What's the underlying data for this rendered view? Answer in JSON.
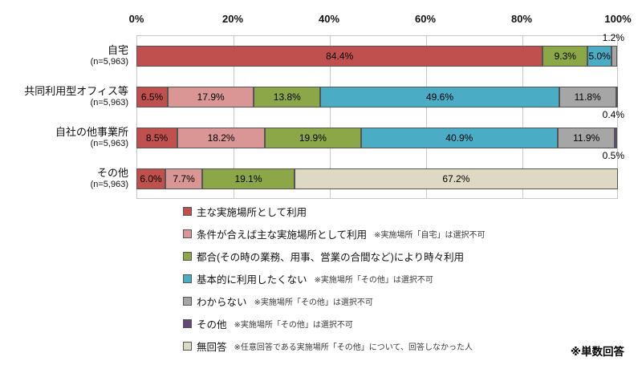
{
  "chart_data": {
    "type": "bar",
    "orientation": "horizontal",
    "stacked": true,
    "x_ticks": [
      "0%",
      "20%",
      "40%",
      "60%",
      "80%",
      "100%"
    ],
    "xlim": [
      0,
      100
    ],
    "grid": true,
    "legend_position": "bottom",
    "categories": [
      "自宅",
      "共同利用型オフィス等",
      "自社の他事業所",
      "その他"
    ],
    "category_sublabels": [
      "(n=5,963)",
      "(n=5,963)",
      "(n=5,963)",
      "(n=5,963)"
    ],
    "series": [
      {
        "name": "主な実施場所として利用",
        "color": "#C0504D",
        "values": [
          84.4,
          6.5,
          8.5,
          6.0
        ]
      },
      {
        "name": "条件が合えば主な実施場所として利用",
        "color": "#D99694",
        "values": [
          0,
          17.9,
          18.2,
          7.7
        ]
      },
      {
        "name": "都合(その時の業務、用事、営業の合間など)により時々利用",
        "color": "#8CA747",
        "values": [
          9.3,
          13.8,
          19.9,
          19.1
        ]
      },
      {
        "name": "基本的に利用したくない",
        "color": "#4BACC6",
        "values": [
          5.0,
          49.6,
          40.9,
          0
        ]
      },
      {
        "name": "わからない",
        "color": "#A6A6A6",
        "values": [
          1.2,
          11.8,
          11.9,
          0
        ]
      },
      {
        "name": "その他",
        "color": "#604A7B",
        "values": [
          0,
          0.4,
          0.5,
          0
        ]
      },
      {
        "name": "無回答",
        "color": "#DDD9C3",
        "values": [
          0,
          0,
          0,
          67.2
        ]
      }
    ],
    "legend_notes": [
      "",
      "※実施場所「自宅」は選択不可",
      "",
      "※実施場所「その他」は選択不可",
      "※実施場所「その他」は選択不可",
      "※実施場所「その他」は選択不可",
      "※任意回答である実施場所「その他」について、回答しなかった人"
    ],
    "outside_labels": [
      {
        "row": 0,
        "text": "1.2%",
        "position": "above"
      },
      {
        "row": 1,
        "text": "0.4%",
        "position": "below"
      },
      {
        "row": 2,
        "text": "0.5%",
        "position": "below"
      }
    ],
    "footnote": "※単数回答"
  }
}
